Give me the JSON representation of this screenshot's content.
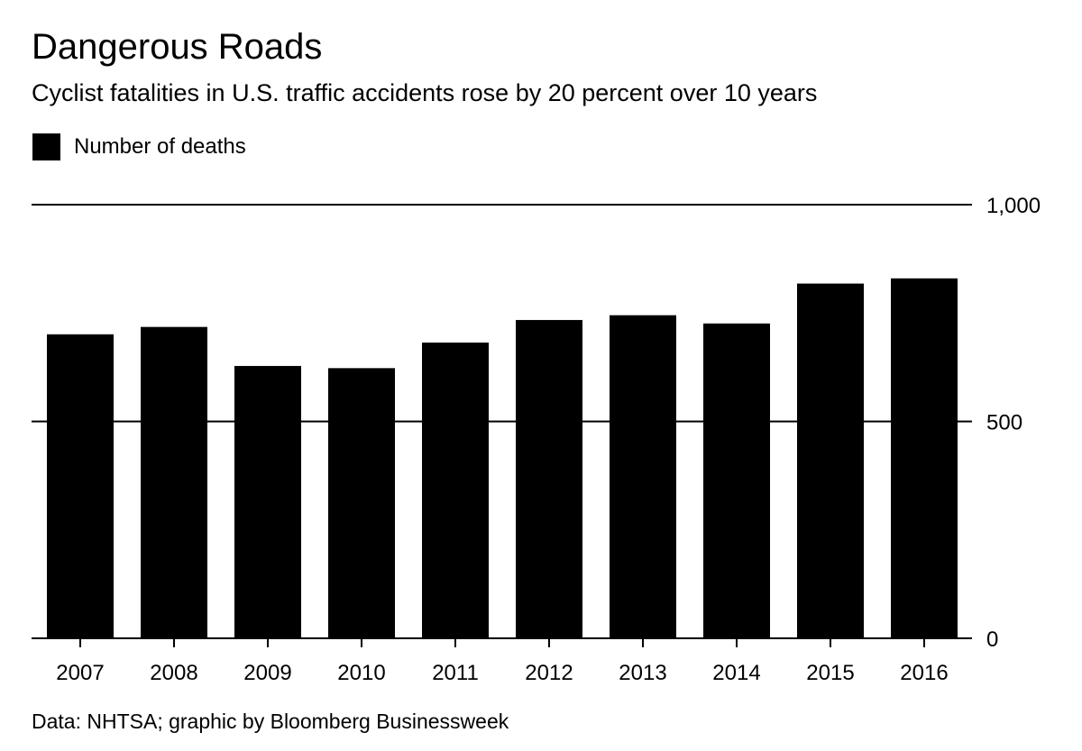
{
  "title": "Dangerous Roads",
  "subtitle": "Cyclist fatalities in U.S. traffic accidents rose by 20 percent over 10 years",
  "legend": {
    "label": "Number of deaths"
  },
  "source": "Data: NHTSA; graphic by Bloomberg Businessweek",
  "colors": {
    "bar": "#000000",
    "axis": "#000000",
    "background": "#ffffff"
  },
  "chart_data": {
    "type": "bar",
    "title": "Dangerous Roads",
    "subtitle": "Cyclist fatalities in U.S. traffic accidents rose by 20 percent over 10 years",
    "categories": [
      "2007",
      "2008",
      "2009",
      "2010",
      "2011",
      "2012",
      "2013",
      "2014",
      "2015",
      "2016"
    ],
    "series": [
      {
        "name": "Number of deaths",
        "values": [
          701,
          718,
          628,
          623,
          682,
          734,
          745,
          726,
          818,
          830
        ]
      }
    ],
    "ylim": [
      0,
      1000
    ],
    "yticks": [
      0,
      500,
      1000
    ],
    "ytick_labels": [
      "0",
      "500",
      "1,000"
    ],
    "y_axis_side": "right",
    "grid": true,
    "legend_position": "top-left"
  }
}
